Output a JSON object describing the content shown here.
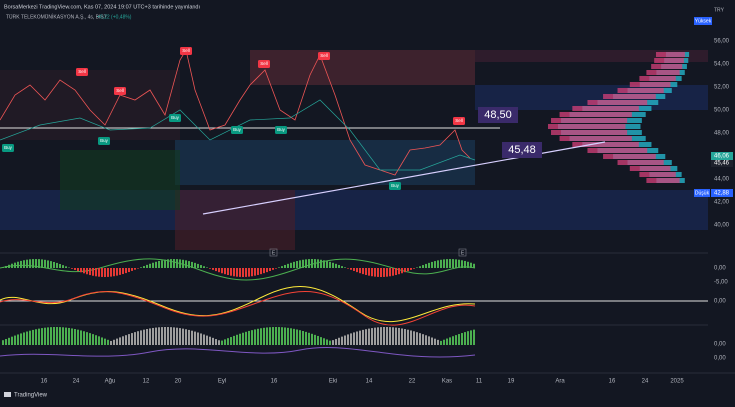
{
  "header": {
    "publisher": "BorsaMerkezi TradingView.com, Kas 07, 2024 19:07 UTC+3 tarihinde yayınlandı",
    "symbol": "TÜRK TELEKOMÜNİKASYON A.Ş., 4s, BIST",
    "change": "+0,22 (+0,48%)"
  },
  "price_axis": {
    "currency": "TRY",
    "high_tag": "Yüksek",
    "low_tag": "Düşük",
    "labels": [
      "56,00",
      "54,00",
      "52,00",
      "50,00",
      "48,00",
      "44,00",
      "42,00",
      "40,00"
    ],
    "current": "46,06",
    "secondary": "45,46",
    "low": "42,88"
  },
  "annotations": [
    "48,50",
    "45,48"
  ],
  "signals": [
    "Sell",
    "Sell",
    "Sell",
    "Sell",
    "Sell",
    "Sell",
    "Buy",
    "Buy",
    "Buy",
    "Buy",
    "Buy",
    "Buy"
  ],
  "indicator_axis": [
    "0,00",
    "-5,00",
    "0,00",
    "0,00",
    "0,00"
  ],
  "event_markers": [
    "E",
    "E"
  ],
  "time_axis": [
    "16",
    "24",
    "Ağu",
    "12",
    "20",
    "Eyl",
    "16",
    "Eki",
    "14",
    "22",
    "Kas",
    "11",
    "19",
    "Ara",
    "16",
    "24",
    "2025"
  ],
  "footer": "TradingView"
}
